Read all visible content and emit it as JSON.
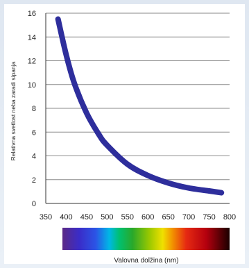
{
  "chart_data": {
    "type": "line",
    "title": "",
    "xlabel": "Valovna dolžina (nm)",
    "ylabel": "Relativna svetlost neba zaradi sipanja",
    "xlim": [
      350,
      800
    ],
    "ylim": [
      0,
      16
    ],
    "xticks": [
      "350",
      "400",
      "450",
      "500",
      "550",
      "600",
      "650",
      "700",
      "750",
      "800"
    ],
    "yticks": [
      "0",
      "2",
      "4",
      "6",
      "8",
      "10",
      "12",
      "14",
      "16"
    ],
    "grid": "horizontal",
    "spectrum_bar": true,
    "series": [
      {
        "color": "#2e2e9c",
        "x": [
          380,
          400,
          420,
          450,
          480,
          500,
          550,
          600,
          650,
          700,
          750,
          780
        ],
        "y": [
          15.5,
          12.5,
          10.1,
          7.6,
          5.8,
          4.9,
          3.3,
          2.35,
          1.72,
          1.3,
          1.05,
          0.9
        ]
      }
    ]
  }
}
